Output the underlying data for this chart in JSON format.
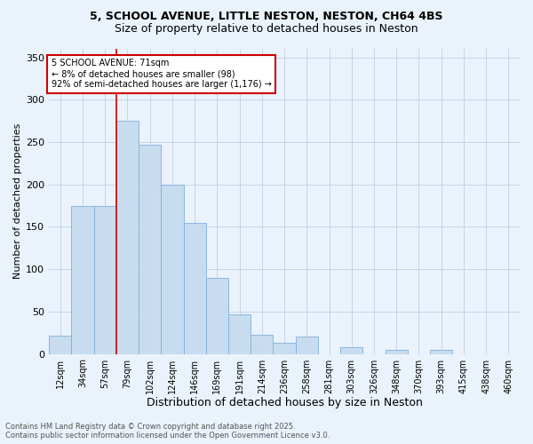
{
  "title_line1": "5, SCHOOL AVENUE, LITTLE NESTON, NESTON, CH64 4BS",
  "title_line2": "Size of property relative to detached houses in Neston",
  "xlabel": "Distribution of detached houses by size in Neston",
  "ylabel": "Number of detached properties",
  "bar_color": "#c8dcf0",
  "bar_edge_color": "#7fb0d8",
  "background_color": "#eaf2fb",
  "categories": [
    "12sqm",
    "34sqm",
    "57sqm",
    "79sqm",
    "102sqm",
    "124sqm",
    "146sqm",
    "169sqm",
    "191sqm",
    "214sqm",
    "236sqm",
    "258sqm",
    "281sqm",
    "303sqm",
    "326sqm",
    "348sqm",
    "370sqm",
    "393sqm",
    "415sqm",
    "438sqm",
    "460sqm"
  ],
  "values": [
    22,
    175,
    175,
    275,
    247,
    200,
    155,
    90,
    47,
    23,
    13,
    21,
    0,
    8,
    0,
    5,
    0,
    5,
    0,
    0,
    0
  ],
  "ylim": [
    0,
    360
  ],
  "yticks": [
    0,
    50,
    100,
    150,
    200,
    250,
    300,
    350
  ],
  "vline_x": 2.5,
  "vline_color": "#cc0000",
  "annotation_text": "5 SCHOOL AVENUE: 71sqm\n← 8% of detached houses are smaller (98)\n92% of semi-detached houses are larger (1,176) →",
  "annotation_box_facecolor": "#ffffff",
  "annotation_box_edgecolor": "#cc0000",
  "footer_line1": "Contains HM Land Registry data © Crown copyright and database right 2025.",
  "footer_line2": "Contains public sector information licensed under the Open Government Licence v3.0.",
  "grid_color": "#c0d0e4",
  "title1_fontsize": 9,
  "title2_fontsize": 9,
  "tick_fontsize": 7,
  "ylabel_fontsize": 8,
  "xlabel_fontsize": 9,
  "annotation_fontsize": 7,
  "footer_fontsize": 6
}
